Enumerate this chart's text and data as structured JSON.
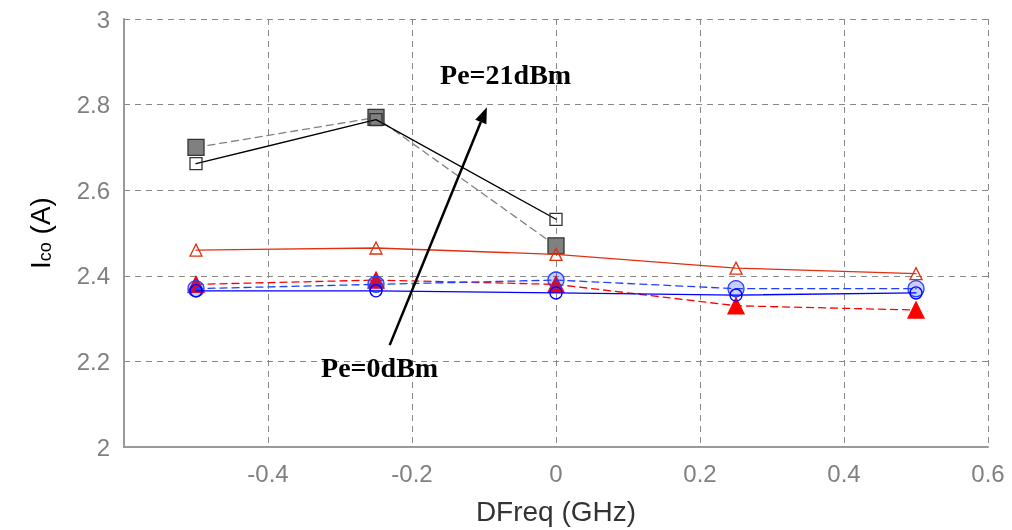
{
  "chart_data": {
    "type": "line",
    "xlabel": "DFreq (GHz)",
    "ylabel": "I$_{co}$ (A)",
    "xlim": [
      -0.6,
      0.6
    ],
    "xticks": [
      {
        "value": -0.6,
        "label": null
      },
      -0.4,
      -0.2,
      0,
      0.2,
      0.4,
      0.6
    ],
    "ylim": [
      2,
      3
    ],
    "yticks": [
      2,
      2.2,
      2.4,
      2.6,
      2.8,
      3
    ],
    "grid": true,
    "annotations": [
      "Pe=21dBm",
      "Pe=0dBm"
    ],
    "series": [
      {
        "color": "#000000",
        "marker": "square",
        "line_style": "solid",
        "x": [
          -0.5,
          -0.25,
          0
        ],
        "values": [
          2.662,
          2.765,
          2.532
        ]
      },
      {
        "color": "#808080",
        "marker": "square",
        "line_style": "dashed",
        "x": [
          -0.5,
          -0.25,
          0
        ],
        "values": [
          2.7,
          2.77,
          2.47
        ]
      },
      {
        "color": "#e03010",
        "marker": "triangle",
        "line_style": "solid",
        "x": [
          -0.5,
          -0.25,
          0,
          0.25,
          0.5
        ],
        "values": [
          2.46,
          2.465,
          2.45,
          2.418,
          2.405
        ]
      },
      {
        "color": "#ff0000",
        "marker": "triangle",
        "line_style": "dashed",
        "x": [
          -0.5,
          -0.25,
          0,
          0.25,
          0.5
        ],
        "values": [
          2.38,
          2.39,
          2.38,
          2.33,
          2.32
        ]
      },
      {
        "color": "#2040ff",
        "marker": "circle",
        "line_style": "dashed",
        "x": [
          -0.5,
          -0.25,
          0,
          0.25,
          0.5
        ],
        "values": [
          2.37,
          2.38,
          2.39,
          2.37,
          2.37
        ]
      },
      {
        "color": "#0000ff",
        "marker": "circle",
        "line_style": "solid",
        "x": [
          -0.5,
          -0.25,
          0,
          0.25,
          0.5
        ],
        "values": [
          2.365,
          2.365,
          2.36,
          2.355,
          2.36
        ]
      }
    ]
  }
}
